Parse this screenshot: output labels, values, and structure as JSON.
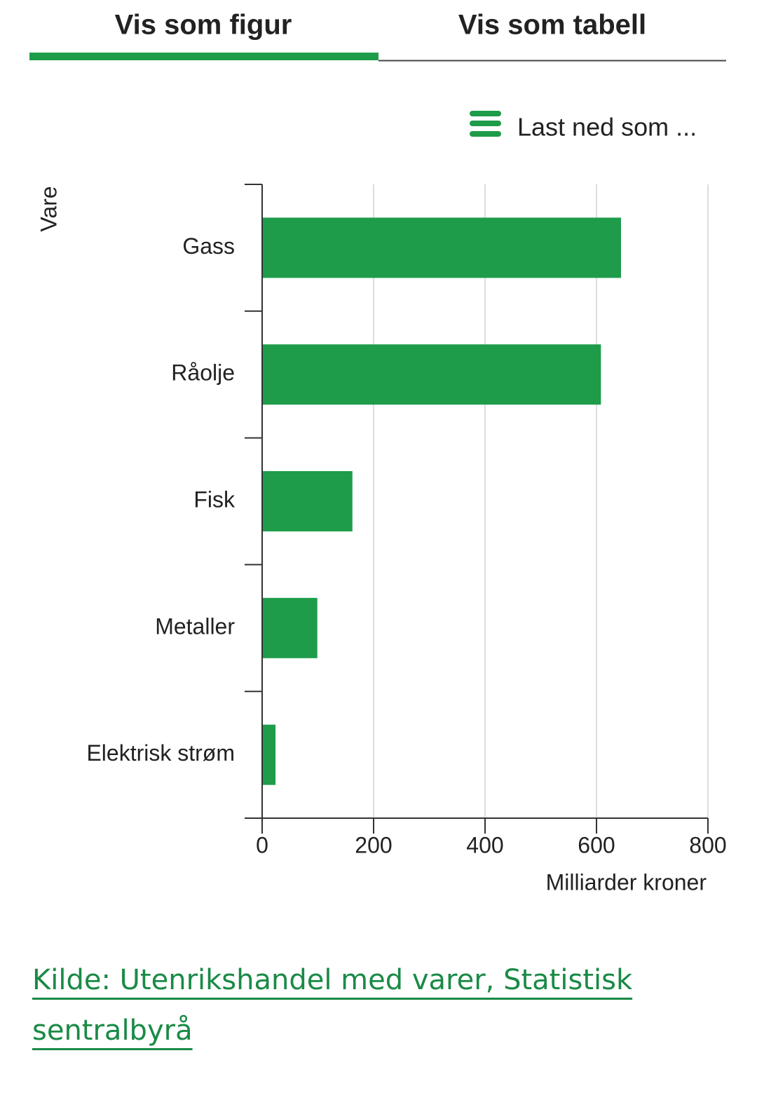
{
  "tabs": [
    "Vis som figur",
    "Vis som tabell"
  ],
  "download_label": "Last ned som ...",
  "source": "Kilde: Utenrikshandel med varer, Statistisk sentralbyrå",
  "chart_data": {
    "type": "bar",
    "orientation": "horizontal",
    "y_label": "Vare",
    "x_label": "Milliarder kroner",
    "categories": [
      "Gass",
      "Råolje",
      "Fisk",
      "Metaller",
      "Elektrisk strøm"
    ],
    "values": [
      644,
      608,
      162,
      99,
      24
    ],
    "color": "#1e9c4a",
    "xlim": [
      0,
      800
    ],
    "xticks": [
      0,
      200,
      400,
      600,
      800
    ],
    "grid": true
  }
}
